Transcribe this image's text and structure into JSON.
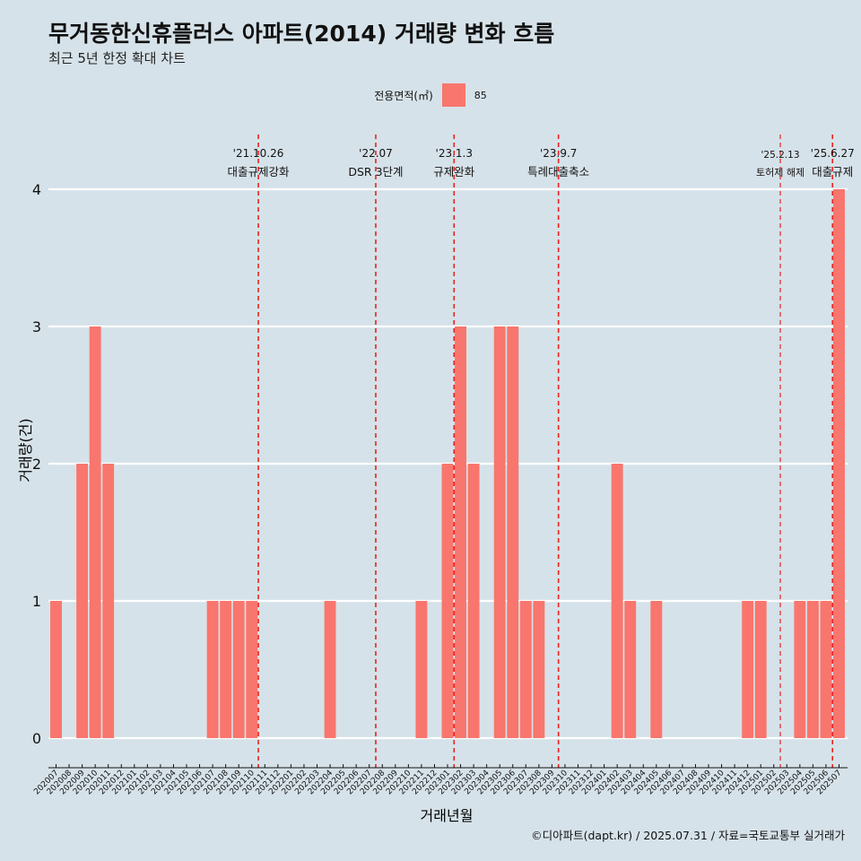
{
  "chart_data": {
    "type": "bar",
    "title": "무거동한신휴플러스 아파트(2014) 거래량 변화 흐름",
    "subtitle": "최근 5년 한정 확대 차트",
    "xlabel": "거래년월",
    "ylabel": "거래량(건)",
    "ylim": [
      0,
      4
    ],
    "yticks": [
      "0",
      "1",
      "2",
      "3",
      "4"
    ],
    "legend": {
      "title": "전용면적(㎡)",
      "placement": "top",
      "entries": [
        "85"
      ]
    },
    "color": "#f8766d",
    "categories": [
      "202007",
      "202008",
      "202009",
      "202010",
      "202011",
      "202012",
      "202101",
      "202102",
      "202103",
      "202104",
      "202105",
      "202106",
      "202107",
      "202108",
      "202109",
      "202110",
      "202111",
      "202112",
      "202201",
      "202202",
      "202203",
      "202204",
      "202205",
      "202206",
      "202207",
      "202208",
      "202209",
      "202210",
      "202211",
      "202212",
      "202301",
      "202302",
      "202303",
      "202304",
      "202305",
      "202306",
      "202307",
      "202308",
      "202309",
      "202310",
      "202311",
      "202312",
      "202401",
      "202402",
      "202403",
      "202404",
      "202405",
      "202406",
      "202407",
      "202408",
      "202409",
      "202410",
      "202411",
      "202412",
      "202501",
      "202502",
      "202503",
      "202504",
      "202505",
      "202506",
      "202507"
    ],
    "series": [
      {
        "name": "85",
        "values": [
          1,
          0,
          2,
          3,
          2,
          0,
          0,
          0,
          0,
          0,
          0,
          0,
          1,
          1,
          1,
          1,
          0,
          0,
          0,
          0,
          0,
          1,
          0,
          0,
          0,
          0,
          0,
          0,
          1,
          0,
          2,
          3,
          2,
          0,
          3,
          3,
          1,
          1,
          0,
          0,
          0,
          0,
          0,
          2,
          1,
          0,
          1,
          0,
          0,
          0,
          0,
          0,
          0,
          1,
          1,
          0,
          0,
          1,
          1,
          1,
          4
        ]
      }
    ],
    "annotations": [
      {
        "date": "'21.10.26",
        "label": "대출규제강화",
        "x": "202110"
      },
      {
        "date": "'22.07",
        "label": "DSR 3단계",
        "x": "202207"
      },
      {
        "date": "'23.1.3",
        "label": "규제완화",
        "x": "202301"
      },
      {
        "date": "'23.9.7",
        "label": "특례대출축소",
        "x": "202309"
      },
      {
        "date": "'25.2.13",
        "label": "토허제 해제",
        "x": "202502"
      },
      {
        "date": "'25.6.27",
        "label": "대출규제",
        "x": "202506"
      }
    ],
    "grid": true
  },
  "caption": "©디아파트(dapt.kr) / 2025.07.31 / 자료=국토교통부 실거래가"
}
